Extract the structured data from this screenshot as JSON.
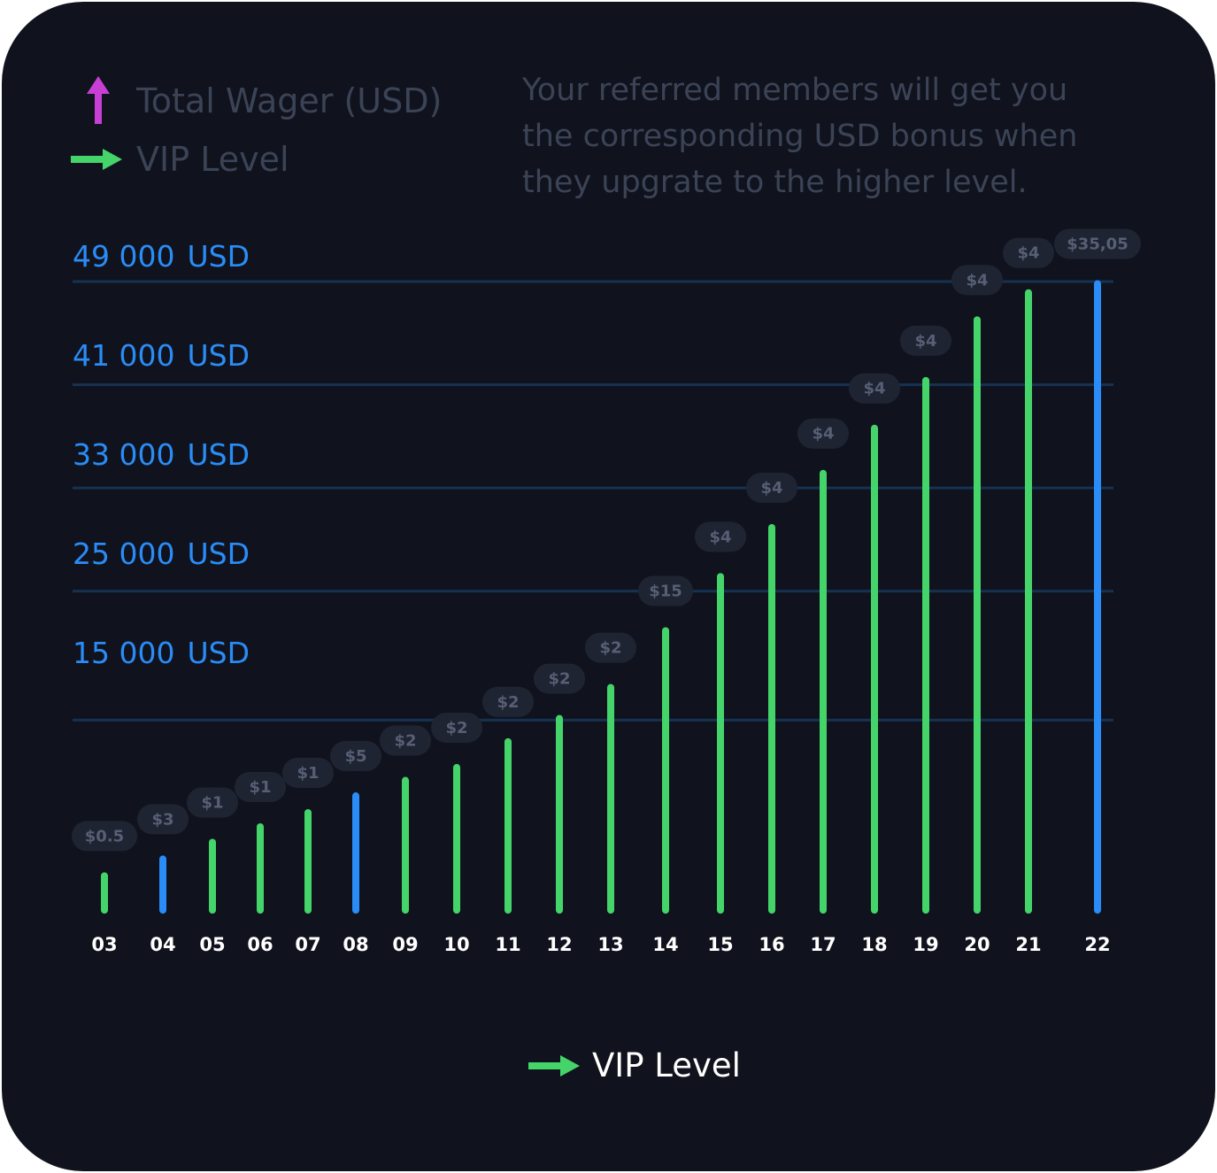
{
  "legend": {
    "wager_label": "Total Wager (USD)",
    "wager_color": "#c83fd6",
    "vip_label": "VIP Level",
    "vip_color": "#44d46a"
  },
  "note": {
    "line1": "Your referred members will get you",
    "line2": "the corresponding USD bonus when",
    "line3": "they upgrate to the higher level."
  },
  "bottom_legend": {
    "label": "VIP Level"
  },
  "colors": {
    "green": "#44d46a",
    "blue": "#2a8cf7",
    "gridline": "#163253",
    "pill": "#1f2433"
  },
  "chart_data": {
    "type": "bar",
    "xlabel": "VIP Level",
    "ylabel": "Total Wager (USD)",
    "y_reference_lines": [
      {
        "value": 49000,
        "amount": "49 000",
        "unit": "USD"
      },
      {
        "value": 41000,
        "amount": "41 000",
        "unit": "USD"
      },
      {
        "value": 33000,
        "amount": "33 000",
        "unit": "USD"
      },
      {
        "value": 25000,
        "amount": "25 000",
        "unit": "USD"
      },
      {
        "value": 15000,
        "amount": "15 000",
        "unit": "USD"
      }
    ],
    "ylim": [
      0,
      49000
    ],
    "categories": [
      "03",
      "04",
      "05",
      "06",
      "07",
      "08",
      "09",
      "10",
      "11",
      "12",
      "13",
      "14",
      "15",
      "16",
      "17",
      "18",
      "19",
      "20",
      "21",
      "22"
    ],
    "values": [
      3200,
      4500,
      5800,
      7000,
      8100,
      9400,
      10600,
      11600,
      13600,
      15400,
      17800,
      22200,
      26400,
      30200,
      34400,
      37900,
      41600,
      46300,
      48400,
      49100
    ],
    "bonus_labels": [
      "$0.5",
      "$3",
      "$1",
      "$1",
      "$1",
      "$5",
      "$2",
      "$2",
      "$2",
      "$2",
      "$2",
      "$15",
      "$4",
      "$4",
      "$4",
      "$4",
      "$4",
      "$4",
      "$4",
      "$35,05"
    ],
    "highlighted": [
      "04",
      "08",
      "22"
    ]
  }
}
